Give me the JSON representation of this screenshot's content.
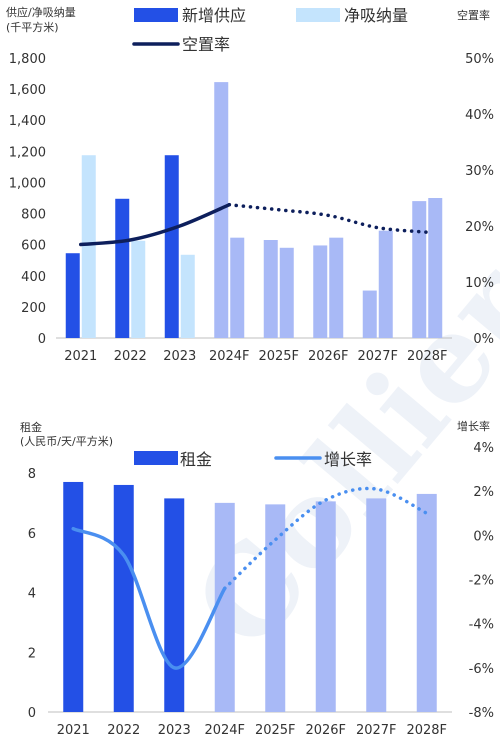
{
  "watermark": "Colliers",
  "colors": {
    "bar_actual": "#2350e6",
    "bar_forecast": "#a8b9f6",
    "absorption_actual": "#c4e4fd",
    "absorption_forecast": "#a8b9f6",
    "vacancy_line": "#0d1f5c",
    "growth_line": "#4a8ff0"
  },
  "chart_data": [
    {
      "type": "bar",
      "ylabel": "供应/净吸纳量\n(千平方米)",
      "y2label": "空置率",
      "categories": [
        "2021",
        "2022",
        "2023",
        "2024F",
        "2025F",
        "2026F",
        "2027F",
        "2028F"
      ],
      "ylim": [
        0,
        1800
      ],
      "yticks": [
        "0",
        "200",
        "400",
        "600",
        "800",
        "1,000",
        "1,200",
        "1,400",
        "1,600",
        "1,800"
      ],
      "y2lim": [
        0,
        50
      ],
      "y2ticks": [
        "0%",
        "10%",
        "20%",
        "30%",
        "40%",
        "50%"
      ],
      "forecast_from_index": 3,
      "series": [
        {
          "name": "新增供应",
          "kind": "bar",
          "values": [
            545,
            895,
            1175,
            1645,
            630,
            595,
            305,
            880
          ]
        },
        {
          "name": "净吸纳量",
          "kind": "bar",
          "values": [
            1175,
            625,
            535,
            645,
            580,
            645,
            690,
            900
          ]
        },
        {
          "name": "空置率",
          "kind": "line",
          "axis": "right",
          "values": [
            16.7,
            17.5,
            20.0,
            23.8,
            22.9,
            21.9,
            19.7,
            18.9
          ]
        }
      ],
      "legend": "top"
    },
    {
      "type": "bar",
      "ylabel": "租金\n(人民币/天/平方米)",
      "y2label": "增长率",
      "categories": [
        "2021",
        "2022",
        "2023",
        "2024F",
        "2025F",
        "2026F",
        "2027F",
        "2028F"
      ],
      "ylim": [
        0,
        8
      ],
      "yticks": [
        "0",
        "2",
        "4",
        "6",
        "8"
      ],
      "y2lim": [
        -8,
        4
      ],
      "y2ticks": [
        "-8%",
        "-6%",
        "-4%",
        "-2%",
        "0%",
        "2%",
        "4%"
      ],
      "forecast_from_index": 3,
      "series": [
        {
          "name": "租金",
          "kind": "bar",
          "values": [
            7.7,
            7.6,
            7.15,
            7.0,
            6.95,
            7.05,
            7.15,
            7.3
          ]
        },
        {
          "name": "增长率",
          "kind": "line",
          "axis": "right",
          "values": [
            0.3,
            -0.9,
            -6.0,
            -2.4,
            -0.2,
            1.6,
            2.1,
            1.0
          ]
        }
      ],
      "legend": "top"
    }
  ]
}
